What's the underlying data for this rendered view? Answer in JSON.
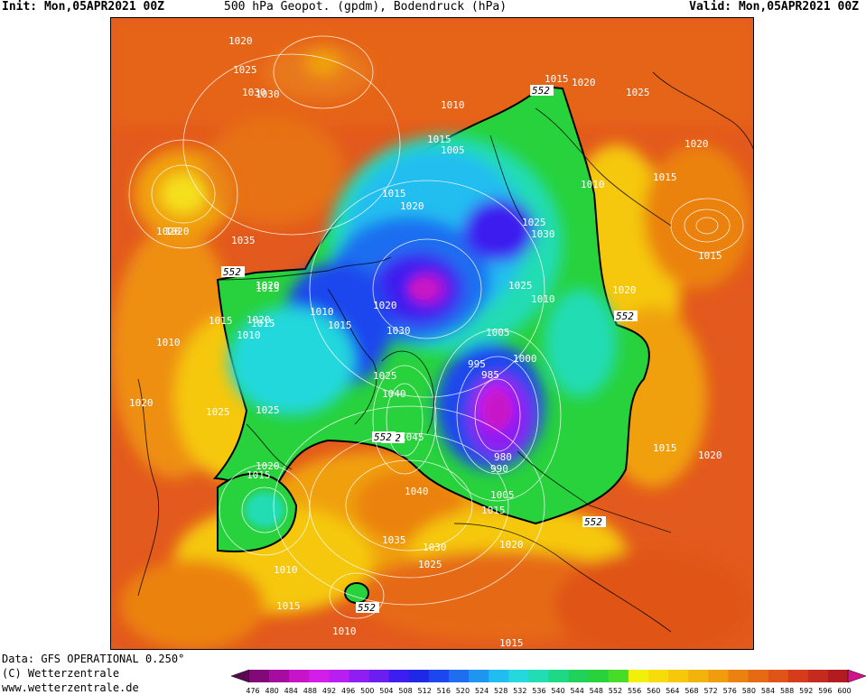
{
  "header": {
    "init": "Init: Mon,05APR2021 00Z",
    "title": "500 hPa Geopot. (gpdm), Bodendruck (hPa)",
    "valid": "Valid: Mon,05APR2021 00Z"
  },
  "footer": {
    "data": "Data: GFS OPERATIONAL 0.250°",
    "copyright": "(C) Wetterzentrale",
    "url": "www.wetterzentrale.de"
  },
  "colorbar": {
    "labels": [
      "476",
      "480",
      "484",
      "488",
      "492",
      "496",
      "500",
      "504",
      "508",
      "512",
      "516",
      "520",
      "524",
      "528",
      "532",
      "536",
      "540",
      "544",
      "548",
      "552",
      "556",
      "560",
      "564",
      "568",
      "572",
      "576",
      "580",
      "584",
      "588",
      "592",
      "596",
      "600"
    ],
    "colors": [
      "#5a0a50",
      "#820a78",
      "#a70ca0",
      "#c614c8",
      "#d21ee6",
      "#b81ef0",
      "#8f1ef2",
      "#6a1ef0",
      "#3c1ef0",
      "#2028e8",
      "#1e46ee",
      "#1e6ef0",
      "#1e96f0",
      "#20bef0",
      "#24d8dc",
      "#22dcb4",
      "#1ed886",
      "#20d25a",
      "#28d23c",
      "#46dc28",
      "#f0f00a",
      "#f5dc0a",
      "#f5c80a",
      "#f2b40c",
      "#f09c0c",
      "#eb8210",
      "#e66a14",
      "#e05418",
      "#d63c1c",
      "#c42a1e",
      "#b01c20",
      "#d2148c"
    ]
  },
  "map": {
    "isobar_labels": [
      "1020",
      "1025",
      "1030",
      "1020",
      "1035",
      "1015",
      "1020",
      "1010",
      "1005",
      "1015",
      "1015",
      "1020",
      "1025",
      "1030",
      "1025",
      "1010",
      "1020",
      "1030",
      "1010",
      "1015",
      "1005",
      "1000",
      "995",
      "985",
      "1025",
      "1040",
      "1045",
      "1035",
      "1040",
      "1030",
      "1025",
      "1020",
      "1005",
      "1015",
      "980",
      "990",
      "1015",
      "1020",
      "1010",
      "1015",
      "1010",
      "1015",
      "1010",
      "1020",
      "1020",
      "1025",
      "1030",
      "1025",
      "1020",
      "1015",
      "1010",
      "1015",
      "1020",
      "1015",
      "1015",
      "1020",
      "1020",
      "1015",
      "1010",
      "1025",
      "1020",
      "1015",
      "1020"
    ],
    "contour_labels": [
      "552",
      "552",
      "552",
      "552",
      "552",
      "552",
      "552"
    ],
    "color_low": "#c418d8",
    "color_high": "#e04e1a"
  }
}
